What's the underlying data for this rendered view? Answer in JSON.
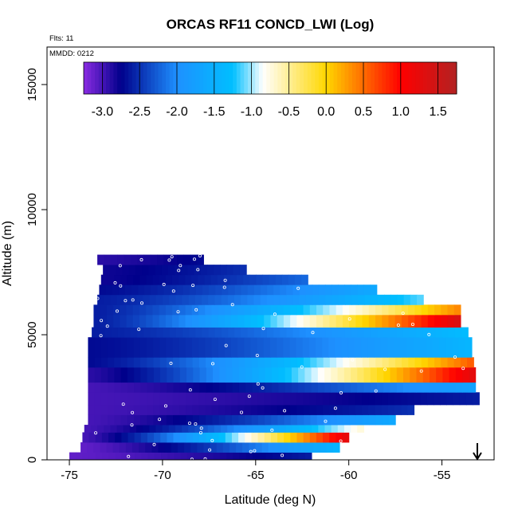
{
  "chart_data": {
    "type": "heatmap",
    "title": "ORCAS RF11 CONCD_LWI (Log)",
    "xlabel": "Latitude (deg N)",
    "ylabel": "Altitude (m)",
    "xlim": [
      -76.2,
      -52.2
    ],
    "ylim": [
      0,
      16500
    ],
    "x_ticks": [
      -75,
      -70,
      -65,
      -60,
      -55
    ],
    "x_tick_labels": [
      "-75",
      "-70",
      "-65",
      "-60",
      "-55"
    ],
    "y_ticks": [
      0,
      5000,
      10000,
      15000
    ],
    "y_tick_labels": [
      "0",
      "5000",
      "10000",
      "15000"
    ],
    "annotations": {
      "flights": "Flts: 11",
      "date": "MMDD: 0212"
    },
    "colorbar": {
      "min": -3.25,
      "max": 1.75,
      "ticks": [
        -3.0,
        -2.5,
        -2.0,
        -1.5,
        -1.0,
        -0.5,
        0.0,
        0.5,
        1.0,
        1.5
      ],
      "tick_labels": [
        "-3.0",
        "-2.5",
        "-2.0",
        "-1.5",
        "-1.0",
        "-0.5",
        "0.0",
        "0.5",
        "1.0",
        "1.5"
      ],
      "colors": [
        "#8a2be2",
        "#00008b",
        "#1e90ff",
        "#00bfff",
        "#ffffff",
        "#ffd700",
        "#ff0000",
        "#b22222"
      ],
      "color_stops": [
        -3.25,
        -2.75,
        -2.0,
        -1.25,
        -0.85,
        0.0,
        1.0,
        1.75
      ]
    },
    "arrow_marker": {
      "lat": -53.1,
      "altitude": 0
    },
    "bands": [
      {
        "alt_lo": 0,
        "alt_hi": 300,
        "lat_lo": -75.0,
        "lat_hi": -62.0,
        "v_lo": -3.1,
        "v_hi": -2.6
      },
      {
        "alt_lo": 300,
        "alt_hi": 700,
        "lat_lo": -74.4,
        "lat_hi": -60.5,
        "v_lo": -3.1,
        "v_hi": -1.4
      },
      {
        "alt_lo": 700,
        "alt_hi": 1100,
        "lat_lo": -74.3,
        "lat_hi": -60.0,
        "v_lo": -3.0,
        "v_hi": 1.3
      },
      {
        "alt_lo": 1100,
        "alt_hi": 1400,
        "lat_lo": -74.2,
        "lat_hi": -59.2,
        "v_lo": -3.0,
        "v_hi": -0.7
      },
      {
        "alt_lo": 1400,
        "alt_hi": 1800,
        "lat_lo": -74.0,
        "lat_hi": -57.5,
        "v_lo": -3.0,
        "v_hi": -1.6
      },
      {
        "alt_lo": 1800,
        "alt_hi": 2200,
        "lat_lo": -74.0,
        "lat_hi": -56.5,
        "v_lo": -3.0,
        "v_hi": -2.5
      },
      {
        "alt_lo": 2200,
        "alt_hi": 2700,
        "lat_lo": -74.0,
        "lat_hi": -53.0,
        "v_lo": -3.0,
        "v_hi": -2.6
      },
      {
        "alt_lo": 2700,
        "alt_hi": 3100,
        "lat_lo": -74.0,
        "lat_hi": -53.2,
        "v_lo": -3.0,
        "v_hi": -1.7
      },
      {
        "alt_lo": 3100,
        "alt_hi": 3700,
        "lat_lo": -74.0,
        "lat_hi": -53.2,
        "v_lo": -2.9,
        "v_hi": 1.3
      },
      {
        "alt_lo": 3700,
        "alt_hi": 4100,
        "lat_lo": -74.0,
        "lat_hi": -53.3,
        "v_lo": -2.7,
        "v_hi": 0.6
      },
      {
        "alt_lo": 4100,
        "alt_hi": 4900,
        "lat_lo": -74.0,
        "lat_hi": -53.4,
        "v_lo": -2.7,
        "v_hi": -1.4
      },
      {
        "alt_lo": 4900,
        "alt_hi": 5300,
        "lat_lo": -73.8,
        "lat_hi": -53.6,
        "v_lo": -2.6,
        "v_hi": -1.3
      },
      {
        "alt_lo": 5300,
        "alt_hi": 5800,
        "lat_lo": -73.7,
        "lat_hi": -54.0,
        "v_lo": -2.6,
        "v_hi": 1.4
      },
      {
        "alt_lo": 5800,
        "alt_hi": 6200,
        "lat_lo": -73.7,
        "lat_hi": -54.0,
        "v_lo": -2.6,
        "v_hi": 0.4
      },
      {
        "alt_lo": 6200,
        "alt_hi": 6600,
        "lat_lo": -73.5,
        "lat_hi": -56.0,
        "v_lo": -2.6,
        "v_hi": -1.1
      },
      {
        "alt_lo": 6600,
        "alt_hi": 7000,
        "lat_lo": -73.4,
        "lat_hi": -58.5,
        "v_lo": -2.7,
        "v_hi": -1.6
      },
      {
        "alt_lo": 7000,
        "alt_hi": 7400,
        "lat_lo": -73.3,
        "lat_hi": -62.2,
        "v_lo": -2.8,
        "v_hi": -2.2
      },
      {
        "alt_lo": 7400,
        "alt_hi": 7800,
        "lat_lo": -73.2,
        "lat_hi": -65.5,
        "v_lo": -2.8,
        "v_hi": -2.5
      },
      {
        "alt_lo": 7800,
        "alt_hi": 8200,
        "lat_lo": -73.5,
        "lat_hi": -67.8,
        "v_lo": -2.9,
        "v_hi": -2.7
      }
    ]
  }
}
